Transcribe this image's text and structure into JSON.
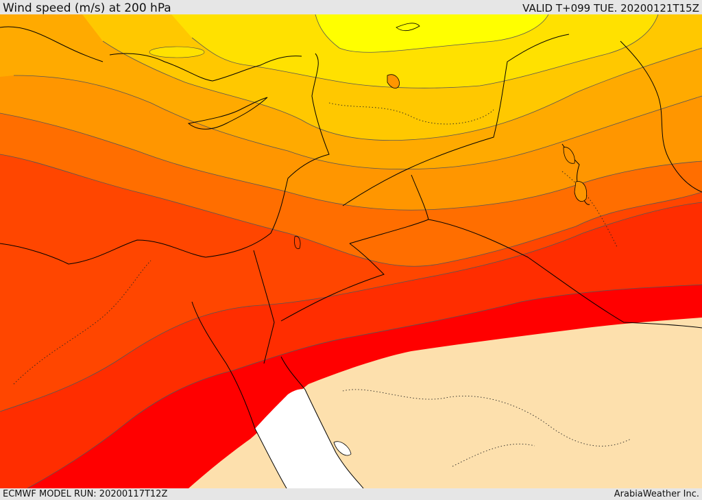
{
  "header": {
    "title": "Wind speed (m/s) at 200 hPa",
    "valid_time": "VALID T+099 TUE. 20200121T15Z"
  },
  "footer": {
    "model_run": "ECMWF MODEL RUN: 20200117T12Z",
    "credit": "ArabiaWeather Inc."
  },
  "colors": {
    "band_yellow": "#ffff00",
    "band_gold": "#ffe100",
    "band_amber": "#ffc800",
    "band_light_orange": "#ffaa00",
    "band_orange": "#ff9600",
    "band_dark_orange": "#ff6e00",
    "band_red_orange": "#ff4600",
    "band_orange_red": "#ff2d00",
    "band_red": "#ff0000",
    "masked_land": "#fde0ad",
    "masked_sea": "#ffffff"
  }
}
